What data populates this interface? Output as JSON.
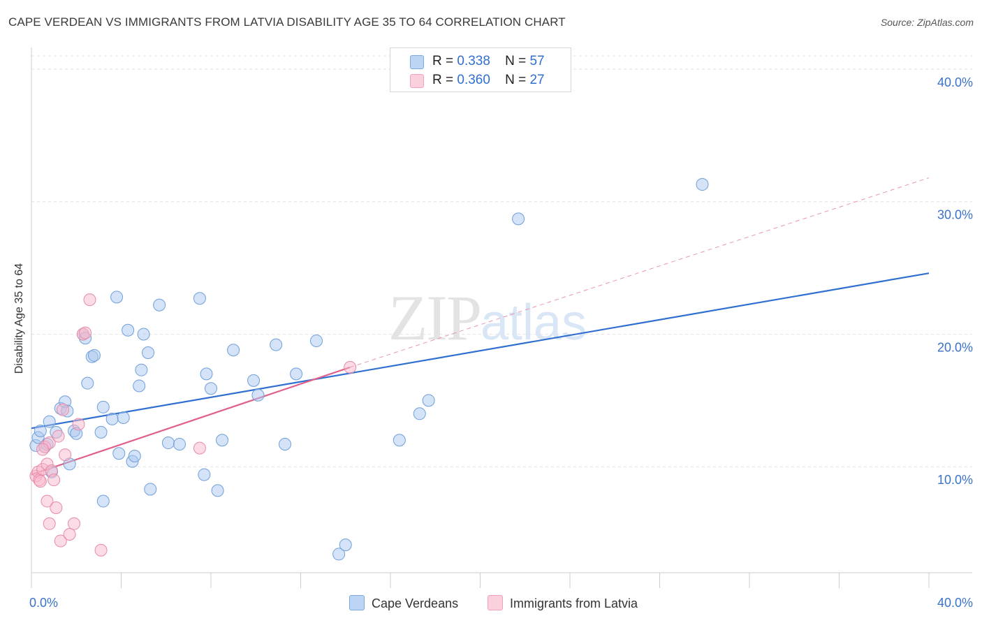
{
  "header": {
    "title": "CAPE VERDEAN VS IMMIGRANTS FROM LATVIA DISABILITY AGE 35 TO 64 CORRELATION CHART",
    "source": "Source: ZipAtlas.com"
  },
  "watermark": {
    "zip": "ZIP",
    "atlas": "atlas"
  },
  "legend": {
    "rows": [
      {
        "r_label": "R =",
        "r_value": "0.338",
        "n_label": "N =",
        "n_value": "57",
        "color": "#a9c8f0"
      },
      {
        "r_label": "R =",
        "r_value": "0.360",
        "n_label": "N =",
        "n_value": "27",
        "color": "#f7b8cb"
      }
    ]
  },
  "bottom_legend": [
    {
      "label": "Cape Verdeans",
      "color": "#a9c8f0"
    },
    {
      "label": "Immigrants from Latvia",
      "color": "#f7b8cb"
    }
  ],
  "chart_data": {
    "type": "scatter",
    "title": "CAPE VERDEAN VS IMMIGRANTS FROM LATVIA DISABILITY AGE 35 TO 64 CORRELATION CHART",
    "xlabel": "",
    "ylabel": "Disability Age 35 to 64",
    "xlim": [
      0,
      40
    ],
    "ylim": [
      2,
      41
    ],
    "x_tick_labels": [
      {
        "value": 0,
        "label": "0.0%"
      },
      {
        "value": 40,
        "label": "40.0%"
      }
    ],
    "y_tick_labels": [
      {
        "value": 10,
        "label": "10.0%"
      },
      {
        "value": 20,
        "label": "20.0%"
      },
      {
        "value": 30,
        "label": "30.0%"
      },
      {
        "value": 40,
        "label": "40.0%"
      }
    ],
    "grid": true,
    "legend_position": "top-center",
    "series": [
      {
        "name": "Cape Verdeans",
        "color": "#a9c8f0",
        "stroke": "#6f9fd8",
        "trend": {
          "x0": 0,
          "y0": 12.9,
          "x1": 40,
          "y1": 24.6,
          "color": "#2f6fd0"
        },
        "points": [
          [
            0.2,
            11.6
          ],
          [
            0.3,
            12.2
          ],
          [
            0.4,
            12.7
          ],
          [
            0.6,
            11.5
          ],
          [
            0.7,
            11.7
          ],
          [
            0.8,
            13.4
          ],
          [
            0.9,
            9.6
          ],
          [
            1.1,
            12.6
          ],
          [
            1.3,
            14.4
          ],
          [
            1.5,
            14.9
          ],
          [
            1.6,
            14.2
          ],
          [
            1.7,
            10.2
          ],
          [
            1.9,
            12.7
          ],
          [
            2.0,
            12.5
          ],
          [
            2.3,
            20.0
          ],
          [
            2.4,
            19.7
          ],
          [
            2.5,
            16.3
          ],
          [
            2.7,
            18.3
          ],
          [
            2.8,
            18.4
          ],
          [
            3.1,
            12.6
          ],
          [
            3.2,
            14.5
          ],
          [
            3.2,
            7.4
          ],
          [
            3.6,
            13.6
          ],
          [
            3.8,
            22.8
          ],
          [
            3.9,
            11.0
          ],
          [
            4.1,
            13.7
          ],
          [
            4.3,
            20.3
          ],
          [
            4.5,
            10.4
          ],
          [
            4.6,
            10.8
          ],
          [
            4.8,
            16.1
          ],
          [
            4.9,
            17.3
          ],
          [
            5.0,
            20.0
          ],
          [
            5.2,
            18.6
          ],
          [
            5.3,
            8.3
          ],
          [
            5.7,
            22.2
          ],
          [
            6.1,
            11.8
          ],
          [
            6.6,
            11.7
          ],
          [
            7.5,
            22.7
          ],
          [
            7.7,
            9.4
          ],
          [
            7.8,
            17.0
          ],
          [
            8.0,
            15.9
          ],
          [
            8.3,
            8.2
          ],
          [
            8.5,
            12.0
          ],
          [
            9.0,
            18.8
          ],
          [
            9.9,
            16.5
          ],
          [
            10.1,
            15.4
          ],
          [
            10.9,
            19.2
          ],
          [
            11.3,
            11.7
          ],
          [
            11.8,
            17.0
          ],
          [
            12.7,
            19.5
          ],
          [
            13.7,
            3.4
          ],
          [
            14.0,
            4.1
          ],
          [
            16.4,
            12.0
          ],
          [
            17.3,
            14.0
          ],
          [
            17.7,
            15.0
          ],
          [
            21.7,
            28.7
          ],
          [
            29.9,
            31.3
          ]
        ]
      },
      {
        "name": "Immigrants from Latvia",
        "color": "#f7b8cb",
        "stroke": "#e88aa8",
        "trend": {
          "x0": 0,
          "y0": 9.4,
          "x1": 14.2,
          "y1": 17.5,
          "color": "#e0608a"
        },
        "trend_ext": {
          "x0": 14.2,
          "y0": 17.5,
          "x1": 40,
          "y1": 31.8,
          "color": "#e896b0"
        },
        "points": [
          [
            0.2,
            9.3
          ],
          [
            0.3,
            9.6
          ],
          [
            0.35,
            9.0
          ],
          [
            0.4,
            8.9
          ],
          [
            0.5,
            9.8
          ],
          [
            0.6,
            11.5
          ],
          [
            0.7,
            10.2
          ],
          [
            0.7,
            7.4
          ],
          [
            0.8,
            11.8
          ],
          [
            0.8,
            5.7
          ],
          [
            0.9,
            9.7
          ],
          [
            1.0,
            9.0
          ],
          [
            1.1,
            6.9
          ],
          [
            1.2,
            12.3
          ],
          [
            1.3,
            4.4
          ],
          [
            1.4,
            14.3
          ],
          [
            1.5,
            10.9
          ],
          [
            1.7,
            4.9
          ],
          [
            1.9,
            5.7
          ],
          [
            2.1,
            13.2
          ],
          [
            2.3,
            20.0
          ],
          [
            2.4,
            20.1
          ],
          [
            2.6,
            22.6
          ],
          [
            3.1,
            3.7
          ],
          [
            7.5,
            11.4
          ],
          [
            14.2,
            17.5
          ],
          [
            0.5,
            11.3
          ]
        ]
      }
    ]
  }
}
